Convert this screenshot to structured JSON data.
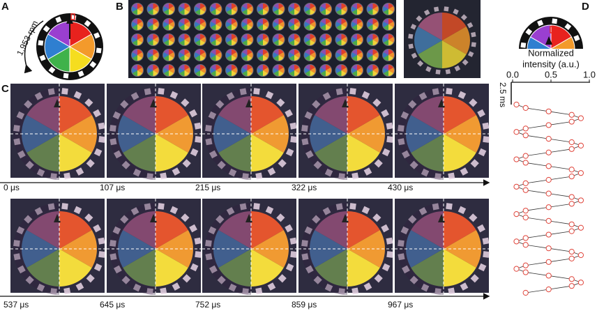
{
  "panels": {
    "a": {
      "label": "A",
      "speed": "1,953 rpm"
    },
    "b": {
      "label": "B"
    },
    "c": {
      "label": "C",
      "frames": [
        "0 μs",
        "107 μs",
        "215 μs",
        "322 μs",
        "430 μs",
        "537 μs",
        "645 μs",
        "752 μs",
        "859 μs",
        "967 μs"
      ]
    },
    "d": {
      "label": "D",
      "axis_title": [
        "Normalized",
        "intensity (a.u.)"
      ],
      "xlim": [
        0,
        1
      ],
      "xticks": [
        {
          "value": 0,
          "label": "0.0"
        },
        {
          "value": 0.5,
          "label": "0.5"
        },
        {
          "value": 1,
          "label": "1.0"
        }
      ],
      "scale_bar": "2.5 ms",
      "values": [
        0.05,
        0.17,
        0.47,
        0.77,
        0.89,
        0.77,
        0.47,
        0.17,
        0.05,
        0.17,
        0.47,
        0.77,
        0.89,
        0.77,
        0.47,
        0.17,
        0.05,
        0.17,
        0.47,
        0.77,
        0.89,
        0.77,
        0.47,
        0.17,
        0.05,
        0.17,
        0.47,
        0.77,
        0.89,
        0.77,
        0.47,
        0.17,
        0.05,
        0.17,
        0.47,
        0.77,
        0.89,
        0.77,
        0.47,
        0.17,
        0.05,
        0.17,
        0.47,
        0.77,
        0.89,
        0.77,
        0.47,
        0.17,
        0.05,
        0.17,
        0.47,
        0.77,
        0.89,
        0.77,
        0.47,
        0.17
      ]
    }
  }
}
